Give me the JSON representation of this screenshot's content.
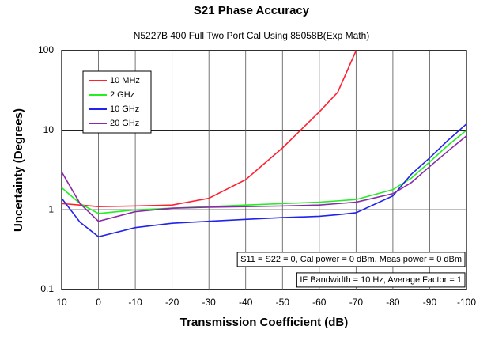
{
  "chart_data": {
    "type": "line",
    "title": "S21 Phase Accuracy",
    "subtitle": "N5227B 400 Full Two Port Cal Using 85058B(Exp Math)",
    "x_label": "Transmission Coefficient (dB)",
    "y_label": "Uncertainty (Degrees)",
    "x": [
      10,
      5,
      0,
      -10,
      -20,
      -30,
      -40,
      -50,
      -60,
      -65,
      -70,
      -80,
      -85,
      -90,
      -95,
      -100
    ],
    "series": [
      {
        "name": "10 MHz",
        "color": "#ff2030",
        "values": [
          1.2,
          1.15,
          1.1,
          1.12,
          1.15,
          1.4,
          2.4,
          6,
          17,
          30,
          100,
          null,
          null,
          null,
          null,
          null
        ]
      },
      {
        "name": "2 GHz",
        "color": "#22ee22",
        "values": [
          1.9,
          1.2,
          0.9,
          1.0,
          1.05,
          1.1,
          1.15,
          1.2,
          1.25,
          1.3,
          1.35,
          1.8,
          2.5,
          4,
          6.5,
          10
        ]
      },
      {
        "name": "10 GHz",
        "color": "#2222ee",
        "values": [
          1.4,
          0.7,
          0.46,
          0.6,
          0.68,
          0.72,
          0.76,
          0.8,
          0.83,
          0.87,
          0.92,
          1.5,
          2.8,
          4.5,
          7.5,
          12
        ]
      },
      {
        "name": "20 GHz",
        "color": "#8a2aa8",
        "values": [
          3.0,
          1.2,
          0.72,
          0.95,
          1.05,
          1.08,
          1.1,
          1.12,
          1.15,
          1.2,
          1.25,
          1.6,
          2.2,
          3.5,
          5.5,
          8.5
        ]
      }
    ],
    "xlim": [
      10,
      -100
    ],
    "xticks": [
      10,
      0,
      -10,
      -20,
      -30,
      -40,
      -50,
      -60,
      -70,
      -80,
      -90,
      -100
    ],
    "ylim": [
      0.1,
      100
    ],
    "yticks": [
      0.1,
      1,
      10,
      100
    ],
    "y_log": true,
    "grid": true,
    "legend": "upper left",
    "annotations": [
      "S11 = S22 = 0, Cal power = 0 dBm, Meas power = 0 dBm",
      "IF Bandwidth = 10 Hz, Average Factor = 1"
    ]
  }
}
